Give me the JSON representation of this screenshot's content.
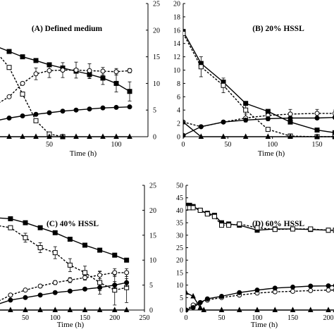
{
  "chart_data": [
    {
      "type": "line",
      "title": "(A) Defined medium",
      "xlabel": "Time (h)",
      "xlim": [
        0,
        120
      ],
      "xticks": [
        50,
        100
      ],
      "ylim_right": [
        0,
        25
      ],
      "yticks_right": [
        0,
        5,
        10,
        15,
        20,
        25
      ],
      "series": [
        {
          "style": "solid",
          "marker": "square-filled",
          "x": [
            0,
            10,
            20,
            30,
            40,
            50,
            60,
            70,
            80,
            90,
            100,
            110
          ],
          "y": [
            18,
            17,
            16,
            15,
            14.3,
            13.5,
            12.9,
            12.3,
            11.7,
            11,
            10,
            8.5
          ],
          "err": [
            0,
            0,
            0,
            0,
            0,
            0,
            0,
            0,
            0.8,
            1.2,
            1.6,
            1.8
          ]
        },
        {
          "style": "dash",
          "marker": "square-open",
          "x": [
            0,
            10,
            20,
            30,
            40,
            50,
            60
          ],
          "y": [
            18,
            16,
            13,
            8,
            3,
            0.5,
            0
          ]
        },
        {
          "style": "dash",
          "marker": "circle-open",
          "x": [
            0,
            10,
            20,
            30,
            40,
            50,
            60,
            70,
            80,
            90,
            100,
            110
          ],
          "y": [
            5,
            6,
            7.5,
            10,
            11.8,
            12.4,
            12.5,
            12.5,
            12.4,
            12.3,
            12.2,
            12.4
          ],
          "err": [
            0,
            0,
            0,
            0,
            1.1,
            1.3,
            1.4,
            1.5,
            1.3,
            0.7,
            0.6,
            0.4
          ]
        },
        {
          "style": "solid",
          "marker": "circle-filled",
          "x": [
            0,
            10,
            20,
            30,
            40,
            50,
            60,
            70,
            80,
            90,
            100,
            110
          ],
          "y": [
            2.5,
            3,
            3.5,
            3.9,
            4.2,
            4.5,
            4.8,
            5,
            5.2,
            5.4,
            5.5,
            5.6
          ]
        },
        {
          "style": "solid",
          "marker": "triangle-filled",
          "x": [
            0,
            10,
            20,
            30,
            40,
            50,
            60,
            70,
            80,
            90,
            100,
            110
          ],
          "y": [
            0,
            0,
            0,
            0,
            0,
            0,
            0,
            0,
            0,
            0,
            0,
            0
          ]
        }
      ]
    },
    {
      "type": "line",
      "title": "(B) 20% HSSL",
      "xlabel": "Time (h)",
      "xlim": [
        0,
        170
      ],
      "xticks": [
        0,
        50,
        100,
        150
      ],
      "ylim": [
        0,
        20
      ],
      "yticks": [
        0,
        2,
        4,
        6,
        8,
        10,
        12,
        14,
        16,
        18,
        20
      ],
      "series": [
        {
          "style": "solid",
          "marker": "square-filled",
          "x": [
            0,
            20,
            45,
            70,
            95,
            120,
            150,
            170
          ],
          "y": [
            15.8,
            11,
            8.2,
            5,
            3.8,
            2.2,
            1,
            0.6
          ]
        },
        {
          "style": "dash",
          "marker": "square-open",
          "x": [
            0,
            20,
            45,
            70,
            95,
            120,
            150,
            170
          ],
          "y": [
            15.5,
            10.5,
            7.7,
            4,
            1.1,
            0.1,
            0,
            0
          ],
          "err": [
            0,
            1.5,
            1.1,
            1.3,
            0,
            0,
            0,
            0
          ]
        },
        {
          "style": "dash",
          "marker": "circle-open",
          "x": [
            0,
            20,
            45,
            70,
            95,
            120,
            150,
            170
          ],
          "y": [
            2.2,
            1.5,
            2.2,
            2.8,
            3.2,
            3.4,
            3.5,
            3.5
          ],
          "err": [
            0,
            0,
            0,
            0.6,
            0.8,
            0.7,
            0.6,
            0.5
          ]
        },
        {
          "style": "solid",
          "marker": "circle-filled",
          "x": [
            0,
            20,
            45,
            70,
            95,
            120,
            150,
            170
          ],
          "y": [
            0.2,
            1.5,
            2.2,
            2.5,
            2.7,
            2.8,
            2.8,
            2.9
          ]
        },
        {
          "style": "solid",
          "marker": "triangle-filled",
          "x": [
            0,
            20,
            45,
            70,
            95,
            120,
            150,
            170
          ],
          "y": [
            2.2,
            0,
            0,
            0,
            0,
            0,
            0,
            0
          ]
        }
      ]
    },
    {
      "type": "line",
      "title": "(C) 40% HSSL",
      "xlabel": "Time (h)",
      "xlim": [
        0,
        250
      ],
      "xticks": [
        50,
        100,
        150,
        200,
        250
      ],
      "ylim_right": [
        0,
        25
      ],
      "yticks_right": [
        0,
        5,
        10,
        15,
        20,
        25
      ],
      "series": [
        {
          "style": "solid",
          "marker": "square-filled",
          "x": [
            0,
            25,
            50,
            75,
            100,
            125,
            150,
            175,
            200,
            220
          ],
          "y": [
            18.5,
            18.3,
            17.5,
            16.5,
            15.5,
            14.2,
            13,
            12,
            11,
            10
          ]
        },
        {
          "style": "dash",
          "marker": "square-open",
          "x": [
            0,
            25,
            50,
            75,
            100,
            125,
            150,
            175,
            200,
            220
          ],
          "y": [
            17,
            16.5,
            14.5,
            12.5,
            11.5,
            9,
            7.5,
            5.5,
            4,
            4.5
          ],
          "err": [
            0,
            0,
            0.9,
            1,
            1.2,
            1.3,
            1.3,
            2.3,
            3,
            3
          ]
        },
        {
          "style": "dash",
          "marker": "circle-open",
          "x": [
            0,
            25,
            50,
            75,
            100,
            125,
            150,
            175,
            200,
            220
          ],
          "y": [
            1.5,
            3,
            4,
            4.8,
            5.5,
            6,
            6.5,
            7,
            7.5,
            7.5
          ],
          "err": [
            0,
            0,
            0,
            0.3,
            0.4,
            0.5,
            0.5,
            0.7,
            0.8,
            0.8
          ]
        },
        {
          "style": "solid",
          "marker": "circle-filled",
          "x": [
            0,
            25,
            50,
            75,
            100,
            125,
            150,
            175,
            200,
            220
          ],
          "y": [
            1,
            2,
            2.5,
            3,
            3.5,
            3.8,
            4.2,
            4.5,
            5,
            5.5
          ],
          "err": [
            0,
            0,
            0,
            0,
            0,
            0,
            0,
            0.6,
            0.7,
            0.8
          ]
        },
        {
          "style": "solid",
          "marker": "triangle-filled",
          "x": [
            0,
            25,
            50,
            75,
            100,
            125,
            150,
            175,
            200,
            220
          ],
          "y": [
            0,
            0,
            0,
            0,
            0,
            0,
            0,
            0,
            0,
            0
          ]
        }
      ]
    },
    {
      "type": "line",
      "title": "(D) 60% HSSL",
      "xlabel": "Time (h)",
      "xlim": [
        0,
        210
      ],
      "xticks": [
        0,
        50,
        100,
        150,
        200
      ],
      "ylim": [
        0,
        50
      ],
      "yticks": [
        0,
        5,
        10,
        15,
        20,
        25,
        30,
        35,
        40,
        45,
        50
      ],
      "series": [
        {
          "style": "solid",
          "marker": "square-filled",
          "x": [
            0,
            5,
            10,
            20,
            30,
            40,
            50,
            60,
            75,
            100,
            125,
            150,
            175,
            200,
            210
          ],
          "y": [
            42,
            42,
            41.5,
            40,
            38.8,
            38,
            35,
            34.5,
            34,
            32,
            32.5,
            32.5,
            32.3,
            32,
            32
          ]
        },
        {
          "style": "dash",
          "marker": "square-open",
          "x": [
            0,
            5,
            10,
            20,
            30,
            40,
            50,
            60,
            75,
            100,
            125,
            150,
            175,
            200,
            210
          ],
          "y": [
            41,
            41,
            41,
            40,
            38.5,
            37.5,
            34,
            34,
            34.5,
            33,
            32.3,
            32.5,
            32.5,
            32,
            32
          ]
        },
        {
          "style": "dash",
          "marker": "circle-open",
          "x": [
            0,
            10,
            20,
            30,
            50,
            75,
            100,
            125,
            150,
            175,
            200,
            210
          ],
          "y": [
            0,
            2,
            3,
            4,
            5,
            6,
            6.8,
            7.3,
            7.5,
            7.8,
            8,
            8
          ]
        },
        {
          "style": "solid",
          "marker": "circle-filled",
          "x": [
            0,
            10,
            20,
            30,
            50,
            75,
            100,
            125,
            150,
            175,
            200,
            210
          ],
          "y": [
            0,
            1,
            3,
            4.5,
            5.5,
            7,
            8,
            8.8,
            9.2,
            9.6,
            9.7,
            9.8
          ]
        },
        {
          "style": "solid",
          "marker": "triangle-filled",
          "x": [
            0,
            10,
            20,
            25,
            50,
            75,
            100,
            125,
            150,
            175,
            200,
            210
          ],
          "y": [
            7,
            5.5,
            1,
            0,
            0,
            0,
            0,
            0,
            0,
            0,
            0,
            0
          ]
        }
      ]
    }
  ]
}
